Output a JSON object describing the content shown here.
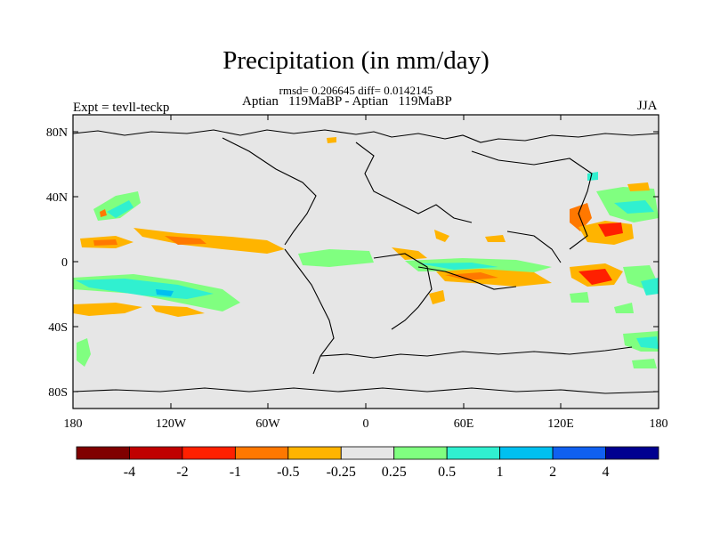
{
  "title": "Precipitation (in mm/day)",
  "stats": "rmsd= 0.206645 diff= 0.0142145",
  "comparison": "Aptian   119MaBP - Aptian   119MaBP",
  "experiment": "Expt = tevll-teckp",
  "season": "JJA",
  "map": {
    "lat_ticks": [
      "80N",
      "40N",
      "0",
      "40S",
      "80S"
    ],
    "lon_ticks": [
      "180",
      "120W",
      "60W",
      "0",
      "60E",
      "120E",
      "180"
    ]
  },
  "colorbar": {
    "colors": [
      "#800000",
      "#c00000",
      "#ff2000",
      "#ff7800",
      "#ffb400",
      "#e6e6e6",
      "#80ff80",
      "#30f0d0",
      "#00c0f0",
      "#1060f0",
      "#000090"
    ],
    "labels": [
      "-4",
      "-2",
      "-1",
      "-0.5",
      "-0.25",
      "0.25",
      "0.5",
      "1",
      "2",
      "4"
    ]
  },
  "colors": {
    "land_ocean_background": "#e6e6e6"
  }
}
